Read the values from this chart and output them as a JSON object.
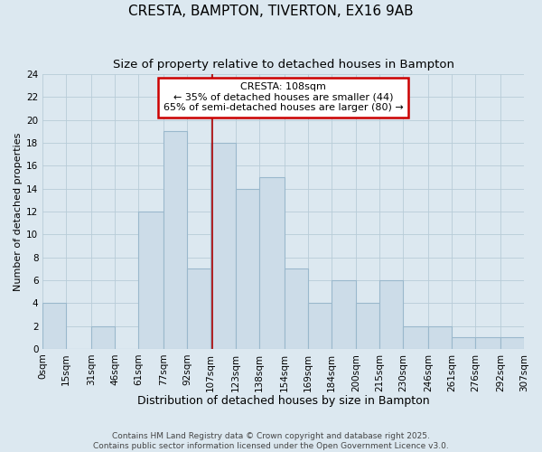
{
  "title": "CRESTA, BAMPTON, TIVERTON, EX16 9AB",
  "subtitle": "Size of property relative to detached houses in Bampton",
  "xlabel": "Distribution of detached houses by size in Bampton",
  "ylabel": "Number of detached properties",
  "bar_color": "#ccdce8",
  "bar_edge_color": "#9ab8cc",
  "background_color": "#dce8f0",
  "plot_bg_color": "#dce8f0",
  "grid_color": "#b8ccd8",
  "bin_edges": [
    0,
    15,
    31,
    46,
    61,
    77,
    92,
    107,
    123,
    138,
    154,
    169,
    184,
    200,
    215,
    230,
    246,
    261,
    276,
    292,
    307
  ],
  "bin_labels": [
    "0sqm",
    "15sqm",
    "31sqm",
    "46sqm",
    "61sqm",
    "77sqm",
    "92sqm",
    "107sqm",
    "123sqm",
    "138sqm",
    "154sqm",
    "169sqm",
    "184sqm",
    "200sqm",
    "215sqm",
    "230sqm",
    "246sqm",
    "261sqm",
    "276sqm",
    "292sqm",
    "307sqm"
  ],
  "counts": [
    4,
    0,
    2,
    0,
    12,
    19,
    7,
    18,
    14,
    15,
    7,
    4,
    6,
    4,
    6,
    2,
    2,
    1,
    1,
    1
  ],
  "vline_x": 108,
  "vline_color": "#aa0000",
  "annotation_title": "CRESTA: 108sqm",
  "annotation_line1": "← 35% of detached houses are smaller (44)",
  "annotation_line2": "65% of semi-detached houses are larger (80) →",
  "annotation_box_color": "#ffffff",
  "annotation_box_edge_color": "#cc0000",
  "ylim": [
    0,
    24
  ],
  "yticks": [
    0,
    2,
    4,
    6,
    8,
    10,
    12,
    14,
    16,
    18,
    20,
    22,
    24
  ],
  "footer_line1": "Contains HM Land Registry data © Crown copyright and database right 2025.",
  "footer_line2": "Contains public sector information licensed under the Open Government Licence v3.0.",
  "title_fontsize": 11,
  "subtitle_fontsize": 9.5,
  "xlabel_fontsize": 9,
  "ylabel_fontsize": 8,
  "tick_fontsize": 7.5,
  "annotation_fontsize": 8,
  "footer_fontsize": 6.5
}
